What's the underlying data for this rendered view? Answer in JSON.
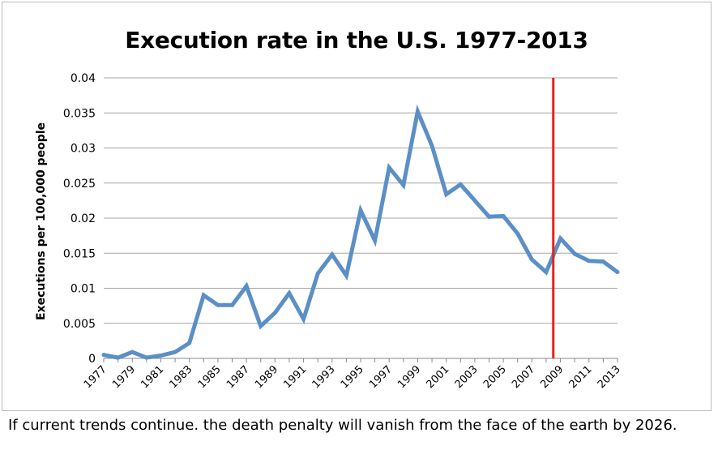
{
  "caption": "If current trends continue. the death penalty will vanish from the face of the earth by 2026.",
  "chart_data": {
    "type": "line",
    "title": "Execution rate in the U.S. 1977-2013",
    "xlabel": "",
    "ylabel": "Executions per 100,000 people",
    "ylim": [
      0,
      0.04
    ],
    "yticks": [
      "0",
      "0.005",
      "0.01",
      "0.015",
      "0.02",
      "0.025",
      "0.03",
      "0.035",
      "0.04"
    ],
    "xlim": [
      1977,
      2013
    ],
    "xticks": [
      "1977",
      "1979",
      "1981",
      "1983",
      "1985",
      "1987",
      "1989",
      "1991",
      "1993",
      "1995",
      "1997",
      "1999",
      "2001",
      "2003",
      "2005",
      "2007",
      "2009",
      "2011",
      "2013"
    ],
    "grid": true,
    "series_color": "#5b8fc6",
    "marker_line": {
      "x": 2008.5,
      "color": "#e8221b"
    },
    "x": [
      1977,
      1978,
      1979,
      1980,
      1981,
      1982,
      1983,
      1984,
      1985,
      1986,
      1987,
      1988,
      1989,
      1990,
      1991,
      1992,
      1993,
      1994,
      1995,
      1996,
      1997,
      1998,
      1999,
      2000,
      2001,
      2002,
      2003,
      2004,
      2005,
      2006,
      2007,
      2008,
      2009,
      2010,
      2011,
      2012,
      2013
    ],
    "values": [
      0.0005,
      0.0001,
      0.0009,
      0.0001,
      0.0004,
      0.0009,
      0.0022,
      0.009,
      0.0076,
      0.0076,
      0.0103,
      0.0046,
      0.0065,
      0.0093,
      0.0056,
      0.0121,
      0.0148,
      0.0118,
      0.0211,
      0.0168,
      0.0272,
      0.0247,
      0.0352,
      0.0303,
      0.0234,
      0.0248,
      0.0225,
      0.0202,
      0.0203,
      0.0178,
      0.0141,
      0.0123,
      0.0171,
      0.0149,
      0.0139,
      0.0138,
      0.0123
    ]
  }
}
